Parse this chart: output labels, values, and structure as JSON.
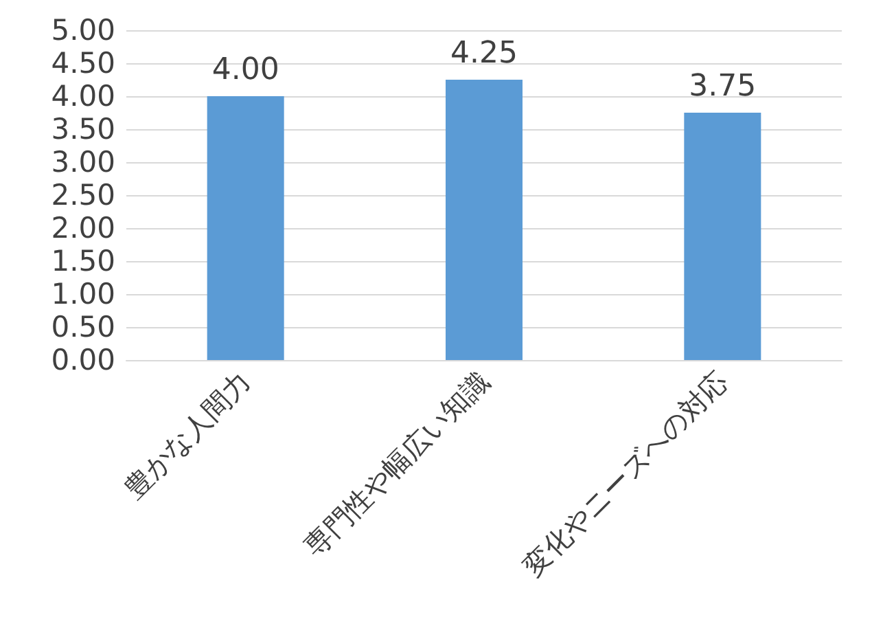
{
  "chart_data": {
    "type": "bar",
    "categories": [
      "豊かな人間力",
      "専門性や幅広い知識",
      "変化やニーズへの対応"
    ],
    "values": [
      4.0,
      4.25,
      3.75
    ],
    "color": "#5b9bd5",
    "value_labels": [
      "4.00",
      "4.25",
      "3.75"
    ],
    "ylim": [
      0,
      5
    ],
    "yticks": [
      {
        "value": 0,
        "label": "0.00"
      },
      {
        "value": 0.5,
        "label": "0.50"
      },
      {
        "value": 1,
        "label": "1.00"
      },
      {
        "value": 1.5,
        "label": "1.50"
      },
      {
        "value": 2,
        "label": "2.00"
      },
      {
        "value": 2.5,
        "label": "2.50"
      },
      {
        "value": 3,
        "label": "3.00"
      },
      {
        "value": 3.5,
        "label": "3.50"
      },
      {
        "value": 4,
        "label": "4.00"
      },
      {
        "value": 4.5,
        "label": "4.50"
      },
      {
        "value": 5,
        "label": "5.00"
      }
    ],
    "grid": "y"
  }
}
